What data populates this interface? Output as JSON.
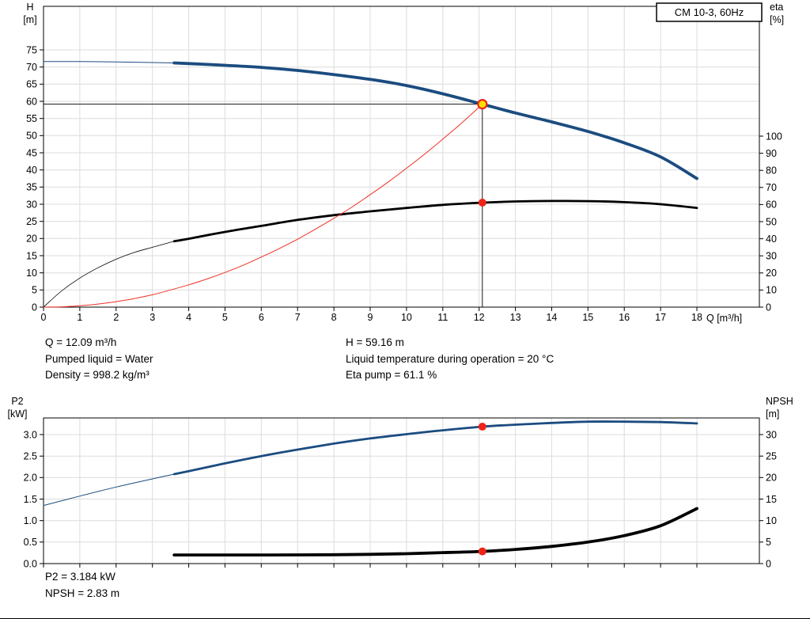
{
  "colors": {
    "blue": "#1b4c80",
    "red": "#ee3124",
    "marker_red": "#ee2418",
    "marker_yellow": "#ffdf00",
    "grid": "#dcdcdc",
    "frame": "#000000"
  },
  "annotations": {
    "top_left": [
      "Q = 12.09 m³/h",
      "Pumped liquid = Water",
      "Density = 998.2 kg/m³"
    ],
    "top_right": [
      "H = 59.16 m",
      "Liquid temperature during operation = 20 °C",
      "Eta pump = 61.1 %"
    ],
    "bottom": [
      "P2 = 3.184 kW",
      "NPSH = 2.83 m"
    ]
  },
  "chart_data": [
    {
      "type": "line",
      "title": "CM 10-3, 60Hz",
      "x_axis": {
        "label": "Q [m³/h]",
        "min": 0,
        "max": 18,
        "show_labels": true,
        "ticks": [
          0,
          1,
          2,
          3,
          4,
          5,
          6,
          7,
          8,
          9,
          10,
          11,
          12,
          13,
          14,
          15,
          16,
          17,
          18
        ]
      },
      "y_left": {
        "label": "H",
        "unit": "[m]",
        "min": 0,
        "max": 75,
        "decimals": 0,
        "ticks": [
          0,
          5,
          10,
          15,
          20,
          25,
          30,
          35,
          40,
          45,
          50,
          55,
          60,
          65,
          70,
          75
        ]
      },
      "y_right": {
        "label": "eta",
        "unit": "[%]",
        "min": 0,
        "max": 100,
        "decimals": 0,
        "ticks": [
          0,
          10,
          20,
          30,
          40,
          50,
          60,
          70,
          80,
          90,
          100
        ]
      },
      "crosshair": {
        "q": 12.09,
        "value": 59.16
      },
      "series": [
        {
          "name": "head",
          "axis": "left",
          "color": "#1b4c80",
          "thin_until": 3.6,
          "width_thin": 1,
          "width_thick": 3.8,
          "points": [
            [
              0,
              71.6
            ],
            [
              1,
              71.6
            ],
            [
              2,
              71.5
            ],
            [
              3,
              71.3
            ],
            [
              3.6,
              71.2
            ],
            [
              4,
              71.0
            ],
            [
              5,
              70.5
            ],
            [
              6,
              69.9
            ],
            [
              7,
              69.0
            ],
            [
              8,
              67.8
            ],
            [
              9,
              66.4
            ],
            [
              10,
              64.6
            ],
            [
              11,
              62.2
            ],
            [
              12.09,
              59.16
            ],
            [
              13,
              56.6
            ],
            [
              14,
              54.0
            ],
            [
              15,
              51.2
            ],
            [
              16,
              47.9
            ],
            [
              17,
              43.8
            ],
            [
              18,
              37.5
            ]
          ]
        },
        {
          "name": "efficiency",
          "axis": "right",
          "color": "#000000",
          "thin_until": 3.6,
          "width_thin": 0.8,
          "width_thick": 2.8,
          "points": [
            [
              0,
              0
            ],
            [
              0.5,
              9.5
            ],
            [
              1,
              17
            ],
            [
              1.5,
              23
            ],
            [
              2,
              28
            ],
            [
              2.5,
              32
            ],
            [
              3,
              35
            ],
            [
              3.6,
              38.5
            ],
            [
              4,
              40
            ],
            [
              5,
              44
            ],
            [
              6,
              47.5
            ],
            [
              7,
              51
            ],
            [
              8,
              53.8
            ],
            [
              9,
              56
            ],
            [
              10,
              58
            ],
            [
              11,
              59.8
            ],
            [
              12.09,
              61.1
            ],
            [
              13,
              61.8
            ],
            [
              14,
              62.1
            ],
            [
              15,
              62.0
            ],
            [
              16,
              61.4
            ],
            [
              17,
              60.2
            ],
            [
              18,
              58.0
            ]
          ]
        },
        {
          "name": "system-curve",
          "axis": "left",
          "color": "#ee3124",
          "width_thick": 1,
          "points": [
            [
              0,
              0
            ],
            [
              0.5,
              0.1
            ],
            [
              1,
              0.4
            ],
            [
              1.5,
              0.9
            ],
            [
              2,
              1.6
            ],
            [
              2.5,
              2.5
            ],
            [
              3,
              3.6
            ],
            [
              3.5,
              5.0
            ],
            [
              4,
              6.5
            ],
            [
              4.5,
              8.2
            ],
            [
              5,
              10.1
            ],
            [
              5.5,
              12.2
            ],
            [
              6,
              14.6
            ],
            [
              6.5,
              17.1
            ],
            [
              7,
              19.8
            ],
            [
              7.5,
              22.8
            ],
            [
              8,
              25.9
            ],
            [
              8.5,
              29.2
            ],
            [
              9,
              32.8
            ],
            [
              9.5,
              36.5
            ],
            [
              10,
              40.5
            ],
            [
              10.5,
              44.6
            ],
            [
              11,
              49.0
            ],
            [
              11.5,
              53.5
            ],
            [
              12.09,
              59.16
            ]
          ]
        }
      ],
      "markers": [
        {
          "name": "duty-point-head",
          "axis": "left",
          "q": 12.09,
          "value": 59.16,
          "style": "operating-point"
        },
        {
          "name": "duty-point-efficiency",
          "axis": "right",
          "q": 12.09,
          "value": 61.1,
          "style": "dot"
        }
      ]
    },
    {
      "type": "line",
      "title": "",
      "x_axis": {
        "label": "",
        "min": 0,
        "max": 18,
        "show_labels": false,
        "ticks": [
          0,
          1,
          2,
          3,
          4,
          5,
          6,
          7,
          8,
          9,
          10,
          11,
          12,
          13,
          14,
          15,
          16,
          17,
          18
        ]
      },
      "y_left": {
        "label": "P2",
        "unit": "[kW]",
        "min": 0,
        "max": 3,
        "decimals": 1,
        "ticks": [
          0,
          0.5,
          1,
          1.5,
          2,
          2.5,
          3
        ]
      },
      "y_right": {
        "label": "NPSH",
        "unit": "[m]",
        "min": 0,
        "max": 30,
        "decimals": 0,
        "ticks": [
          0,
          5,
          10,
          15,
          20,
          25,
          30
        ]
      },
      "series": [
        {
          "name": "p2-power",
          "axis": "left",
          "color": "#1b4c80",
          "thin_until": 3.6,
          "width_thin": 1,
          "width_thick": 2.8,
          "points": [
            [
              0,
              1.35
            ],
            [
              1,
              1.57
            ],
            [
              2,
              1.78
            ],
            [
              3,
              1.97
            ],
            [
              3.6,
              2.08
            ],
            [
              4,
              2.15
            ],
            [
              5,
              2.33
            ],
            [
              6,
              2.5
            ],
            [
              7,
              2.65
            ],
            [
              8,
              2.79
            ],
            [
              9,
              2.91
            ],
            [
              10,
              3.01
            ],
            [
              11,
              3.1
            ],
            [
              12.09,
              3.184
            ],
            [
              13,
              3.23
            ],
            [
              14,
              3.27
            ],
            [
              15,
              3.3
            ],
            [
              16,
              3.3
            ],
            [
              17,
              3.29
            ],
            [
              18,
              3.26
            ]
          ]
        },
        {
          "name": "npsh",
          "axis": "right",
          "color": "#000000",
          "width_thick": 3.8,
          "points": [
            [
              3.6,
              2.0
            ],
            [
              5,
              2.0
            ],
            [
              6,
              2.0
            ],
            [
              7,
              2.02
            ],
            [
              8,
              2.07
            ],
            [
              9,
              2.15
            ],
            [
              10,
              2.3
            ],
            [
              11,
              2.55
            ],
            [
              12.09,
              2.83
            ],
            [
              13,
              3.3
            ],
            [
              14,
              4.0
            ],
            [
              15,
              5.0
            ],
            [
              16,
              6.5
            ],
            [
              17,
              8.8
            ],
            [
              18,
              12.8
            ]
          ]
        }
      ],
      "markers": [
        {
          "name": "duty-point-p2",
          "axis": "left",
          "q": 12.09,
          "value": 3.184,
          "style": "dot"
        },
        {
          "name": "duty-point-npsh",
          "axis": "right",
          "q": 12.09,
          "value": 2.83,
          "style": "dot"
        }
      ]
    }
  ]
}
